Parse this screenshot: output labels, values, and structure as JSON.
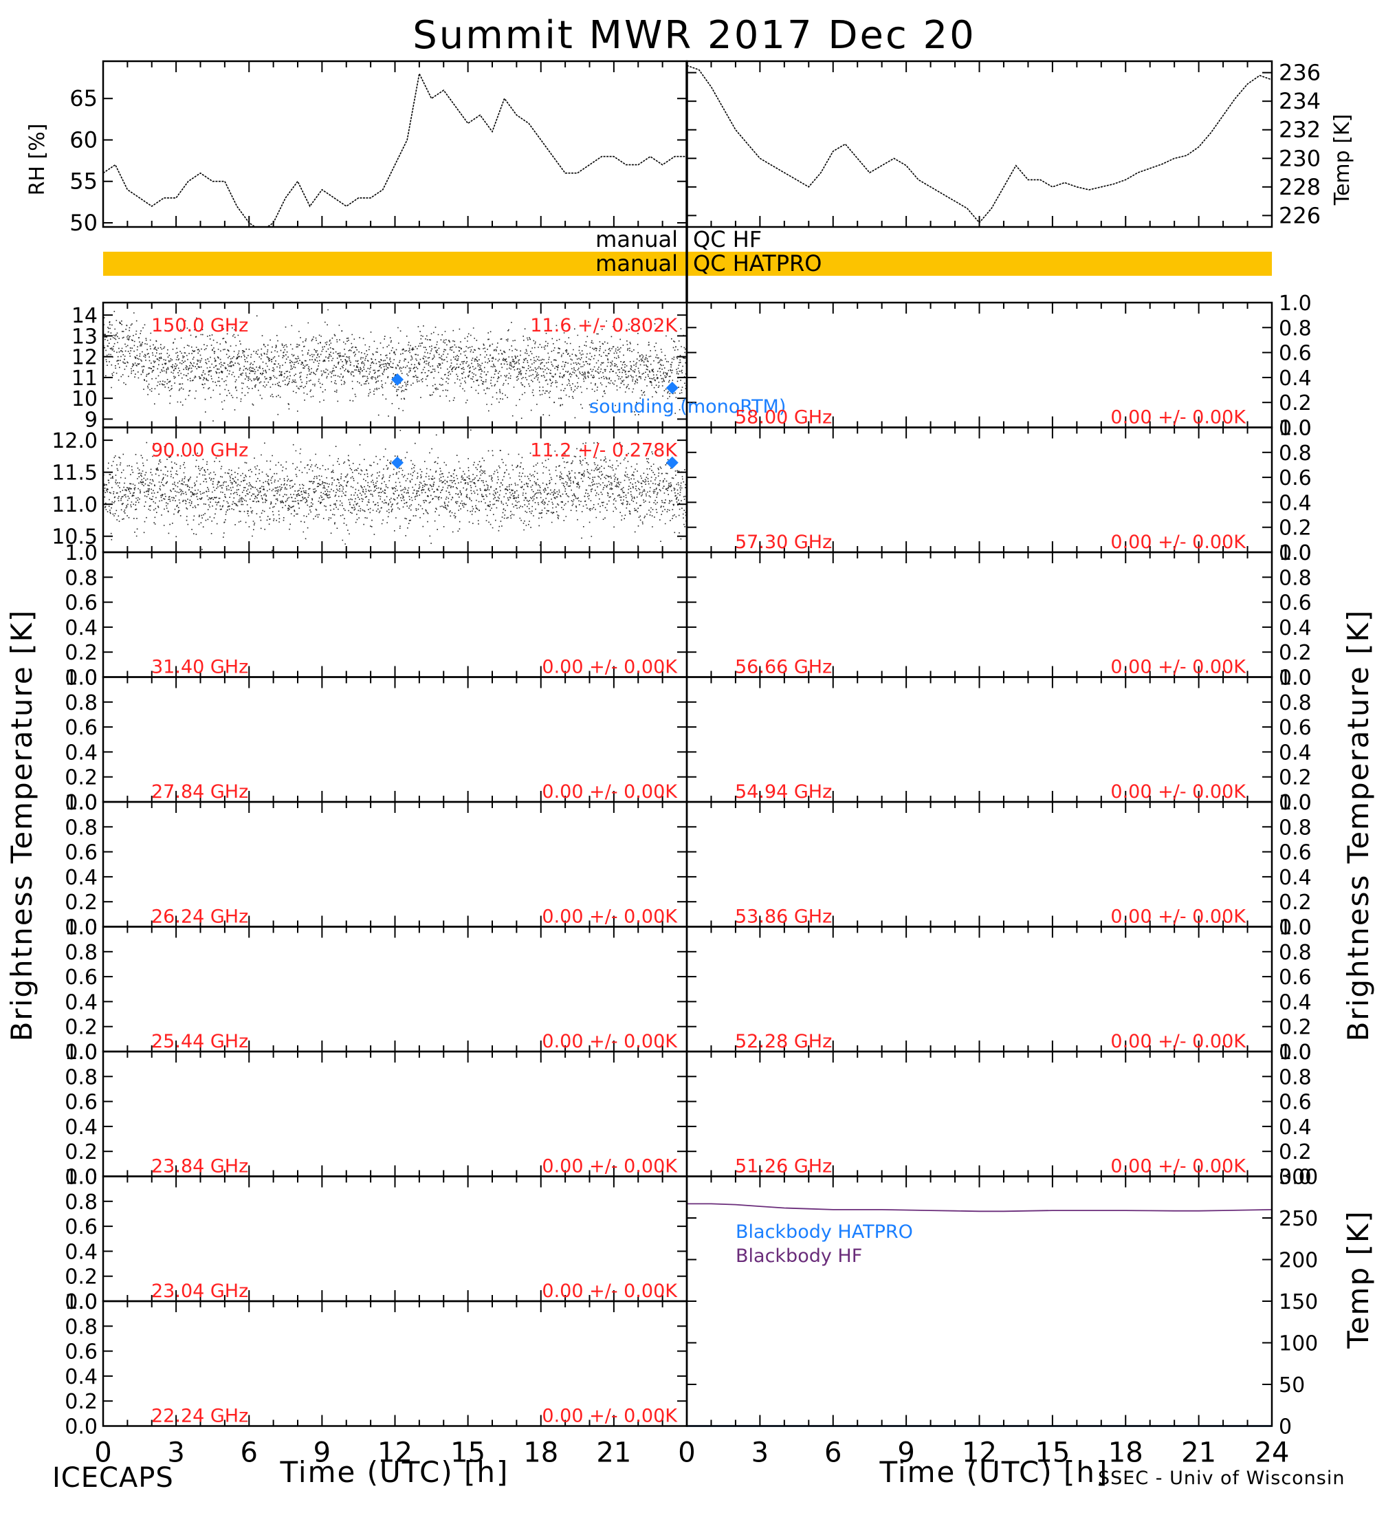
{
  "title": "Summit MWR 2017 Dec 20",
  "footer_left": "ICECAPS",
  "footer_right": "SSEC - Univ of Wisconsin",
  "colors": {
    "accent_red": "#ff2020",
    "sounding_blue": "#1a7fff",
    "qc_bar": "#fcc300",
    "bb_hf": "#6a2c7a",
    "bb_hatpro": "#1a7fff"
  },
  "qc": {
    "line1_left": "manual",
    "line1_right": "QC HF",
    "line2_left": "manual",
    "line2_right": "QC HATPRO"
  },
  "y_axis_left_label": "Brightness Temperature [K]",
  "y_axis_right_label": "Brightness Temperature [K]",
  "chart_data": [
    {
      "type": "line",
      "name": "rh",
      "ylabel": "RH [%]",
      "xlim": [
        0,
        24
      ],
      "ylim": [
        49.5,
        69.5
      ],
      "yticks": [
        50,
        55,
        60,
        65
      ],
      "x": [
        0,
        0.5,
        1,
        1.5,
        2,
        2.5,
        3,
        3.5,
        4,
        4.5,
        5,
        5.5,
        6,
        6.5,
        7,
        7.5,
        8,
        8.5,
        9,
        9.5,
        10,
        10.5,
        11,
        11.5,
        12,
        12.5,
        13,
        13.5,
        14,
        14.5,
        15,
        15.5,
        16,
        16.5,
        17,
        17.5,
        18,
        18.5,
        19,
        19.5,
        20,
        20.5,
        21,
        21.5,
        22,
        22.5,
        23,
        23.5,
        24
      ],
      "y": [
        56,
        57,
        54,
        53,
        52,
        53,
        53,
        55,
        56,
        55,
        55,
        52,
        50,
        49,
        50,
        53,
        55,
        52,
        54,
        53,
        52,
        53,
        53,
        54,
        57,
        60,
        68,
        65,
        66,
        64,
        62,
        63,
        61,
        65,
        63,
        62,
        60,
        58,
        56,
        56,
        57,
        58,
        58,
        57,
        57,
        58,
        57,
        58,
        58
      ]
    },
    {
      "type": "line",
      "name": "temp",
      "ylabel": "Temp [K]",
      "xlim": [
        0,
        24
      ],
      "ylim": [
        225.2,
        236.8
      ],
      "yticks": [
        226,
        228,
        230,
        232,
        234,
        236
      ],
      "x": [
        0,
        0.5,
        1,
        1.5,
        2,
        2.5,
        3,
        3.5,
        4,
        4.5,
        5,
        5.5,
        6,
        6.5,
        7,
        7.5,
        8,
        8.5,
        9,
        9.5,
        10,
        10.5,
        11,
        11.5,
        12,
        12.5,
        13,
        13.5,
        14,
        14.5,
        15,
        15.5,
        16,
        16.5,
        17,
        17.5,
        18,
        18.5,
        19,
        19.5,
        20,
        20.5,
        21,
        21.5,
        22,
        22.5,
        23,
        23.5,
        24
      ],
      "y": [
        236.5,
        236.2,
        235,
        233.5,
        232,
        231,
        230,
        229.5,
        229,
        228.5,
        228,
        229,
        230.5,
        231,
        230,
        229,
        229.5,
        230,
        229.5,
        228.5,
        228,
        227.5,
        227,
        226.5,
        225.5,
        226.5,
        228,
        229.5,
        228.5,
        228.5,
        228,
        228.3,
        228,
        227.8,
        228,
        228.2,
        228.5,
        229,
        229.3,
        229.6,
        230,
        230.2,
        230.8,
        231.8,
        233,
        234.2,
        235.2,
        235.8,
        235.5
      ]
    },
    {
      "type": "scatter",
      "name": "150.0 GHz",
      "label": "150.0 GHz",
      "stats": "11.6 +/- 0.802K",
      "ylim": [
        8.6,
        14.6
      ],
      "yticks": [
        9,
        10,
        11,
        12,
        13,
        14
      ],
      "noise_sd": 0.8,
      "x": [
        0,
        1,
        2,
        3,
        4,
        5,
        6,
        7,
        8,
        9,
        10,
        11,
        12,
        13,
        14,
        15,
        16,
        17,
        18,
        19,
        20,
        21,
        22,
        23,
        24
      ],
      "y": [
        12.8,
        12.3,
        11.6,
        11.5,
        11.7,
        11.6,
        11.4,
        11.3,
        11.7,
        11.8,
        11.6,
        11.5,
        11.5,
        11.6,
        11.7,
        11.6,
        11.5,
        11.6,
        11.5,
        11.4,
        11.5,
        11.6,
        11.3,
        11.2,
        11.3
      ],
      "sounding": [
        {
          "x": 12.1,
          "y": 10.9
        },
        {
          "x": 23.4,
          "y": 10.5
        }
      ],
      "sounding_label": "sounding (monoRTM)"
    },
    {
      "type": "scatter",
      "name": "90.00 GHz",
      "label": "90.00 GHz",
      "stats": "11.2 +/- 0.278K",
      "ylim": [
        10.25,
        12.2
      ],
      "yticks": [
        10.5,
        11.0,
        11.5,
        12.0
      ],
      "noise_sd": 0.27,
      "x": [
        0,
        1,
        2,
        3,
        4,
        5,
        6,
        7,
        8,
        9,
        10,
        11,
        12,
        13,
        14,
        15,
        16,
        17,
        18,
        19,
        20,
        21,
        22,
        23,
        24
      ],
      "y": [
        11.3,
        11.2,
        11.2,
        11.2,
        11.2,
        11.2,
        11.2,
        11.2,
        11.2,
        11.2,
        11.2,
        11.2,
        11.2,
        11.2,
        11.2,
        11.2,
        11.2,
        11.2,
        11.2,
        11.3,
        11.3,
        11.3,
        11.2,
        11.2,
        11.2
      ],
      "sounding": [
        {
          "x": 12.1,
          "y": 11.65
        },
        {
          "x": 23.4,
          "y": 11.65
        }
      ]
    },
    {
      "type": "line",
      "name": "31.40 GHz",
      "label": "31.40 GHz",
      "stats": "0.00 +/- 0.00K",
      "ylim": [
        0,
        1
      ],
      "x": [],
      "y": []
    },
    {
      "type": "line",
      "name": "27.84 GHz",
      "label": "27.84 GHz",
      "stats": "0.00 +/- 0.00K",
      "ylim": [
        0,
        1
      ],
      "x": [],
      "y": []
    },
    {
      "type": "line",
      "name": "26.24 GHz",
      "label": "26.24 GHz",
      "stats": "0.00 +/- 0.00K",
      "ylim": [
        0,
        1
      ],
      "x": [],
      "y": []
    },
    {
      "type": "line",
      "name": "25.44 GHz",
      "label": "25.44 GHz",
      "stats": "0.00 +/- 0.00K",
      "ylim": [
        0,
        1
      ],
      "x": [],
      "y": []
    },
    {
      "type": "line",
      "name": "23.84 GHz",
      "label": "23.84 GHz",
      "stats": "0.00 +/- 0.00K",
      "ylim": [
        0,
        1
      ],
      "x": [],
      "y": []
    },
    {
      "type": "line",
      "name": "23.04 GHz",
      "label": "23.04 GHz",
      "stats": "0.00 +/- 0.00K",
      "ylim": [
        0,
        1
      ],
      "x": [],
      "y": []
    },
    {
      "type": "line",
      "name": "22.24 GHz",
      "label": "22.24 GHz",
      "stats": "0.00 +/- 0.00K",
      "ylim": [
        0,
        1
      ],
      "x": [],
      "y": []
    },
    {
      "type": "line",
      "name": "58.00 GHz",
      "label": "58.00 GHz",
      "stats": "0.00 +/- 0.00K",
      "ylim": [
        0,
        1
      ],
      "x": [],
      "y": []
    },
    {
      "type": "line",
      "name": "57.30 GHz",
      "label": "57.30 GHz",
      "stats": "0.00 +/- 0.00K",
      "ylim": [
        0,
        1
      ],
      "x": [],
      "y": []
    },
    {
      "type": "line",
      "name": "56.66 GHz",
      "label": "56.66 GHz",
      "stats": "0.00 +/- 0.00K",
      "ylim": [
        0,
        1
      ],
      "x": [],
      "y": []
    },
    {
      "type": "line",
      "name": "54.94 GHz",
      "label": "54.94 GHz",
      "stats": "0.00 +/- 0.00K",
      "ylim": [
        0,
        1
      ],
      "x": [],
      "y": []
    },
    {
      "type": "line",
      "name": "53.86 GHz",
      "label": "53.86 GHz",
      "stats": "0.00 +/- 0.00K",
      "ylim": [
        0,
        1
      ],
      "x": [],
      "y": []
    },
    {
      "type": "line",
      "name": "52.28 GHz",
      "label": "52.28 GHz",
      "stats": "0.00 +/- 0.00K",
      "ylim": [
        0,
        1
      ],
      "x": [],
      "y": []
    },
    {
      "type": "line",
      "name": "51.26 GHz",
      "label": "51.26 GHz",
      "stats": "0.00 +/- 0.00K",
      "ylim": [
        0,
        1
      ],
      "x": [],
      "y": []
    },
    {
      "type": "line",
      "name": "blackbody",
      "ylabel": "Temp [K]",
      "ylim": [
        0,
        300
      ],
      "yticks": [
        0,
        50,
        100,
        150,
        200,
        250,
        300
      ],
      "series": [
        {
          "name": "Blackbody HATPRO",
          "x": [
            0,
            24
          ],
          "y": [
            0,
            0
          ]
        },
        {
          "name": "Blackbody HF",
          "x": [
            0,
            1,
            2,
            3,
            4,
            5,
            6,
            7,
            8,
            9,
            10,
            11,
            12,
            13,
            14,
            15,
            16,
            17,
            18,
            19,
            20,
            21,
            22,
            23,
            24
          ],
          "y": [
            267,
            267,
            266,
            264,
            262,
            261,
            260,
            260,
            260,
            259.5,
            259,
            258.5,
            258,
            258,
            258.5,
            259,
            259,
            259,
            259,
            258.8,
            258.5,
            258.5,
            259,
            259.5,
            260
          ]
        }
      ]
    }
  ],
  "xticks": [
    0,
    3,
    6,
    9,
    12,
    15,
    18,
    21,
    24
  ],
  "xlabel_left": "Time (UTC) [h]",
  "xlabel_right": "Time (UTC) [h]"
}
